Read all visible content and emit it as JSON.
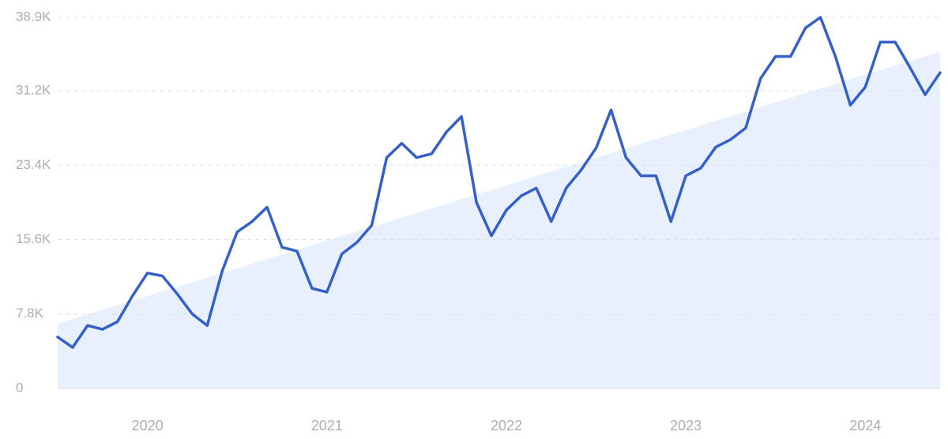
{
  "chart_data": {
    "type": "line",
    "categories": [
      null,
      null,
      null,
      null,
      null,
      null,
      "2020",
      null,
      null,
      null,
      null,
      null,
      null,
      null,
      null,
      null,
      null,
      null,
      "2021",
      null,
      null,
      null,
      null,
      null,
      null,
      null,
      null,
      null,
      null,
      null,
      "2022",
      null,
      null,
      null,
      null,
      null,
      null,
      null,
      null,
      null,
      null,
      null,
      "2023",
      null,
      null,
      null,
      null,
      null,
      null,
      null,
      null,
      null,
      null,
      null,
      "2024",
      null,
      null,
      null,
      null,
      null
    ],
    "values": [
      5400,
      4300,
      6600,
      6200,
      7000,
      9700,
      12100,
      11800,
      9900,
      7800,
      6600,
      12300,
      16400,
      17500,
      19000,
      14800,
      14400,
      10500,
      10100,
      14100,
      15300,
      17100,
      24200,
      25700,
      24200,
      24600,
      26900,
      28500,
      19500,
      16000,
      18700,
      20200,
      21000,
      17500,
      21000,
      22900,
      25200,
      29200,
      24200,
      22300,
      22300,
      17500,
      22300,
      23100,
      25300,
      26100,
      27300,
      32500,
      34800,
      34800,
      37800,
      38900,
      34800,
      29700,
      31600,
      36300,
      36300,
      33600,
      30800,
      33100
    ],
    "color": "#3460c8",
    "trend": [
      6800,
      35300
    ],
    "trend_color": "#dde9fb",
    "ylim": [
      0,
      38900
    ],
    "yticks": [
      0,
      {
        "value": 7800,
        "label": "7.8K"
      },
      {
        "value": 15600,
        "label": "15.6K"
      },
      {
        "value": 23400,
        "label": "23.4K"
      },
      {
        "value": 31200,
        "label": "31.2K"
      },
      {
        "value": 38900,
        "label": "38.9K"
      }
    ],
    "grid": true
  }
}
